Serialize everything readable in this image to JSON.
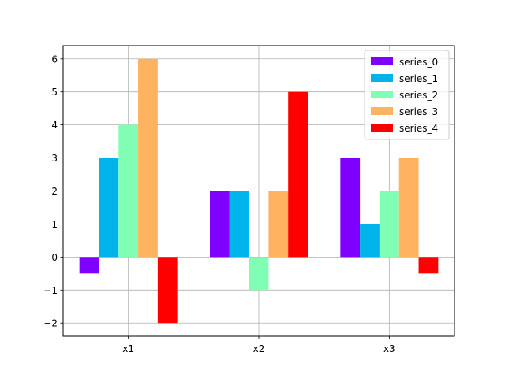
{
  "chart_data": {
    "type": "bar",
    "categories": [
      "x1",
      "x2",
      "x3"
    ],
    "series": [
      {
        "name": "series_0",
        "color": "#8000ff",
        "values": [
          -0.5,
          2,
          3
        ]
      },
      {
        "name": "series_1",
        "color": "#00b4eb",
        "values": [
          3,
          2,
          1
        ]
      },
      {
        "name": "series_2",
        "color": "#80ffb4",
        "values": [
          4,
          -1,
          2
        ]
      },
      {
        "name": "series_3",
        "color": "#ffb360",
        "values": [
          6,
          2,
          3
        ]
      },
      {
        "name": "series_4",
        "color": "#ff0000",
        "values": [
          -2,
          5,
          -0.5
        ]
      }
    ],
    "yticks": [
      -2,
      -1,
      0,
      1,
      2,
      3,
      4,
      5,
      6
    ],
    "ytick_labels": [
      "−2",
      "−1",
      "0",
      "1",
      "2",
      "3",
      "4",
      "5",
      "6"
    ],
    "ylim": [
      -2.4,
      6.4
    ],
    "title": "",
    "xlabel": "",
    "ylabel": "",
    "grid": true,
    "legend_position": "top-right"
  }
}
